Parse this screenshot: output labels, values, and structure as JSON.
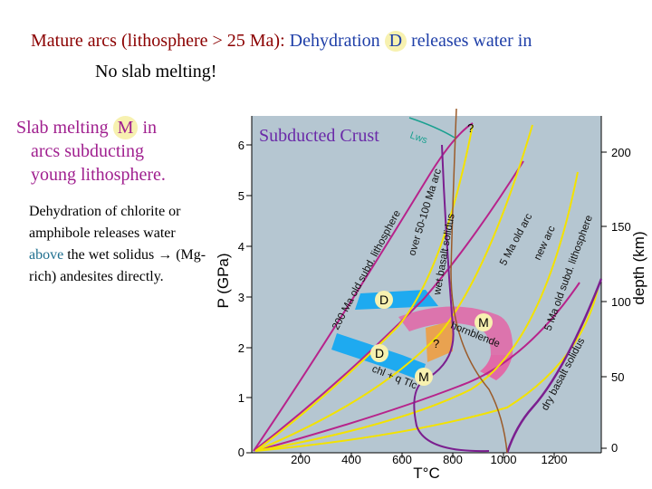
{
  "header": {
    "l1_a": "Mature arcs",
    "l1_b": " (lithosphere > 25 Ma):  ",
    "l1_c": "Dehydration ",
    "l1_badge": "D",
    "l1_d": " releases water  in",
    "l2": "No slab melting!"
  },
  "left": {
    "a": "Slab melting ",
    "badge": "M",
    "b": "  in",
    "c": "arcs subducting",
    "d": "young lithosphere."
  },
  "note": {
    "a": "Dehydration of chlorite or amphibole releases water ",
    "above": "above",
    "b": " the wet solidus → (Mg-rich) andesites directly."
  },
  "diagram": {
    "title": "Subducted Crust",
    "lws": "Lws",
    "ylabel": "P (GPa)",
    "xlabel": "T°C",
    "depth_label": "depth (km)",
    "p_ticks": [
      "0",
      "1",
      "2",
      "3",
      "4",
      "5",
      "6"
    ],
    "t_ticks": [
      "200",
      "400",
      "600",
      "800",
      "1000",
      "1200"
    ],
    "depth_ticks": [
      "0",
      "50",
      "100",
      "150",
      "200"
    ],
    "curves": {
      "old200": "200 Ma old subd. lithosphere",
      "old50": "over 50-100 Ma arc",
      "wet": "wet basalt solidus",
      "arc5": "5 Ma old arc",
      "newarc": "new arc",
      "young5": "5 Ma old subd. lithosphere",
      "dry": "dry basalt solidus",
      "chl": "chl + q  Tlc",
      "hbl": "hornblende"
    },
    "markers": {
      "d": "D",
      "m": "M",
      "q": "?"
    },
    "colors": {
      "plot_bg": "#b5c6d1",
      "blue_band": "#1eaaf0",
      "pink_band": "#e06aa8",
      "yellow_curve": "#f3e200",
      "magenta_curve": "#b7238b",
      "purple_curve": "#7b1f8f",
      "brown_curve": "#9b5b2a"
    }
  }
}
